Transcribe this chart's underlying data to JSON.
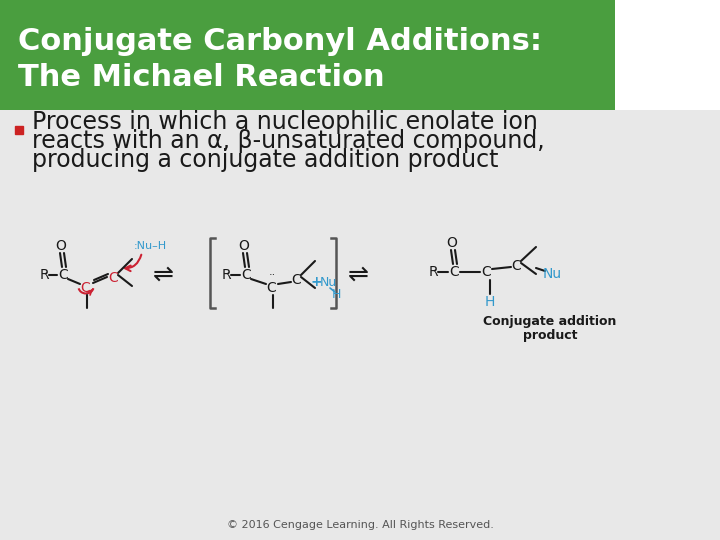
{
  "title_line1": "Conjugate Carbonyl Additions:",
  "title_line2": "The Michael Reaction",
  "title_bg_color": "#4a9e3f",
  "title_text_color": "#ffffff",
  "slide_bg_color": "#e8e8e8",
  "bullet_text_line1": "Process in which a nucleophilic enolate ion",
  "bullet_text_line2": "reacts with an α, β-unsaturated compound,",
  "bullet_text_line3": "producing a conjugate addition product",
  "bullet_color": "#cc2222",
  "body_text_color": "#1a1a1a",
  "footer_text": "© 2016 Cengage Learning. All Rights Reserved.",
  "footer_color": "#555555",
  "title_fontsize": 22,
  "body_fontsize": 17,
  "footer_fontsize": 8,
  "arrow_color": "#cc2233",
  "nu_color": "#3399cc",
  "black": "#1a1a1a",
  "bracket_color": "#555555"
}
